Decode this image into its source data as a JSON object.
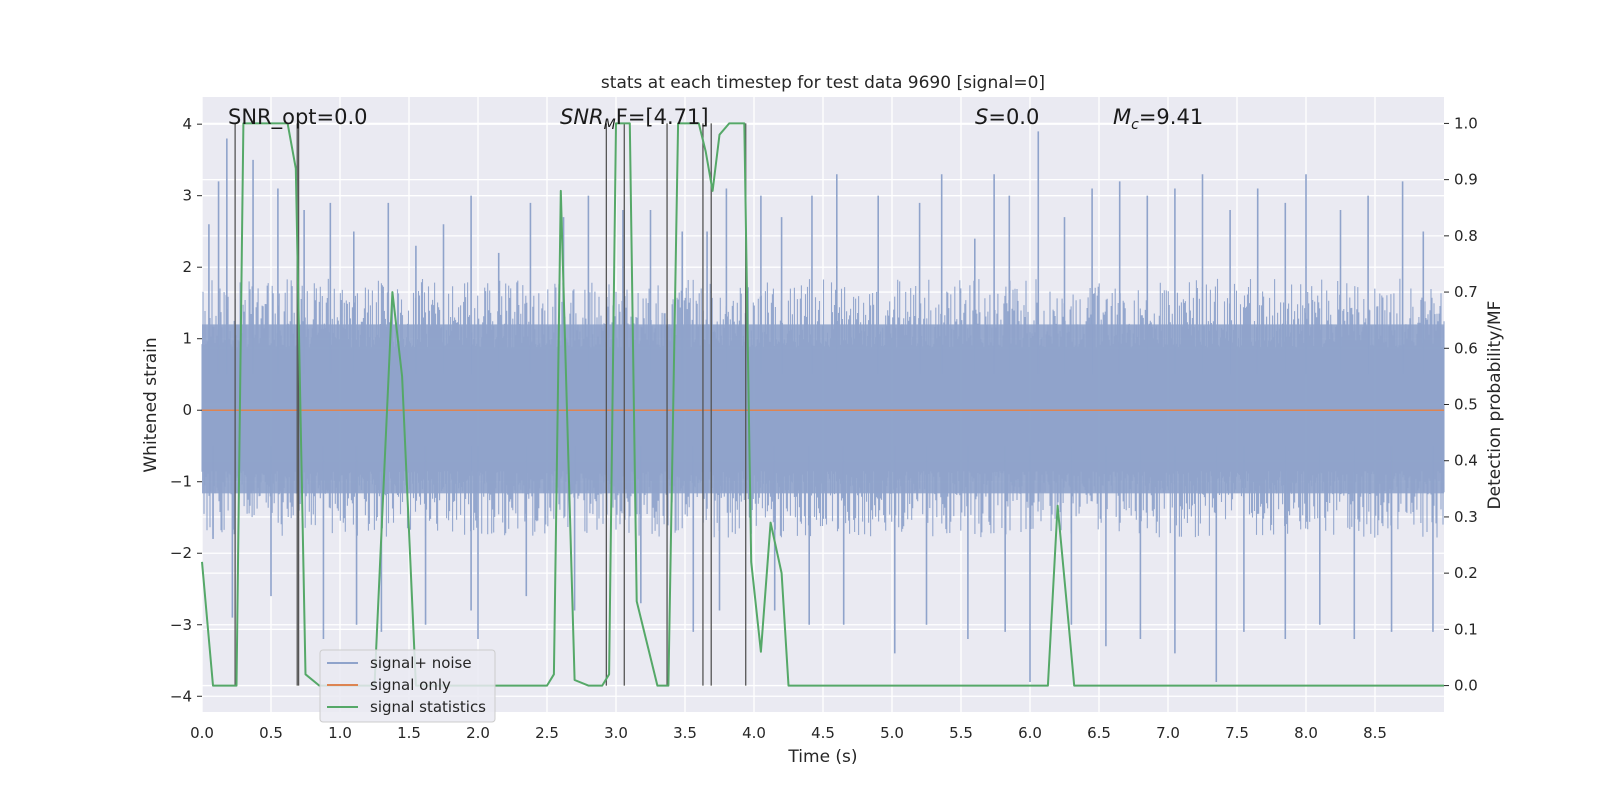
{
  "chart_data": {
    "type": "line",
    "title": "stats at each timestep for test data 9690 [signal=0]",
    "xlabel": "Time (s)",
    "ylabel_left": "Whitened strain",
    "ylabel_right": "Detection probability/MF",
    "xlim": [
      0.0,
      9.0
    ],
    "ylim_left": [
      -4.22,
      4.38
    ],
    "ylim_right": [
      -0.047,
      1.047
    ],
    "xticks": [
      "0.0",
      "0.5",
      "1.0",
      "1.5",
      "2.0",
      "2.5",
      "3.0",
      "3.5",
      "4.0",
      "4.5",
      "5.0",
      "5.5",
      "6.0",
      "6.5",
      "7.0",
      "7.5",
      "8.0",
      "8.5"
    ],
    "xtick_values": [
      0.0,
      0.5,
      1.0,
      1.5,
      2.0,
      2.5,
      3.0,
      3.5,
      4.0,
      4.5,
      5.0,
      5.5,
      6.0,
      6.5,
      7.0,
      7.5,
      8.0,
      8.5
    ],
    "yticks_left": [
      "−4",
      "−3",
      "−2",
      "−1",
      "0",
      "1",
      "2",
      "3",
      "4"
    ],
    "ytick_values_left": [
      -4,
      -3,
      -2,
      -1,
      0,
      1,
      2,
      3,
      4
    ],
    "yticks_right": [
      "0.0",
      "0.1",
      "0.2",
      "0.3",
      "0.4",
      "0.5",
      "0.6",
      "0.7",
      "0.8",
      "0.9",
      "1.0"
    ],
    "ytick_values_right": [
      0.0,
      0.1,
      0.2,
      0.3,
      0.4,
      0.5,
      0.6,
      0.7,
      0.8,
      0.9,
      1.0
    ],
    "grid": true,
    "legend_position": "lower-left",
    "annotations": {
      "snr_opt": "SNR_opt=0.0",
      "snr_mf_prefix": "SNR",
      "snr_mf_sub": "M",
      "snr_mf_suffix": "F=[4.71]",
      "s_label": "S",
      "s_value": "=0.0",
      "mc_label": "M",
      "mc_sub": "c",
      "mc_value": "=9.41"
    },
    "series": [
      {
        "name": "signal+ noise",
        "color": "#8fa3cb",
        "axis": "left",
        "style": "noise",
        "envelope_upper": 1.6,
        "envelope_lower": -1.55,
        "peaks": [
          {
            "x": 0.05,
            "y": 2.6
          },
          {
            "x": 0.12,
            "y": 3.2
          },
          {
            "x": 0.18,
            "y": 3.8
          },
          {
            "x": 0.37,
            "y": 3.5
          },
          {
            "x": 0.55,
            "y": 3.1
          },
          {
            "x": 0.74,
            "y": 2.8
          },
          {
            "x": 0.93,
            "y": 2.9
          },
          {
            "x": 1.1,
            "y": 2.5
          },
          {
            "x": 1.35,
            "y": 2.9
          },
          {
            "x": 1.55,
            "y": 2.3
          },
          {
            "x": 1.75,
            "y": 2.6
          },
          {
            "x": 1.95,
            "y": 3.0
          },
          {
            "x": 2.15,
            "y": 2.2
          },
          {
            "x": 2.38,
            "y": 2.9
          },
          {
            "x": 2.62,
            "y": 2.7
          },
          {
            "x": 2.8,
            "y": 3.0
          },
          {
            "x": 3.05,
            "y": 2.8
          },
          {
            "x": 3.25,
            "y": 2.8
          },
          {
            "x": 3.48,
            "y": 2.5
          },
          {
            "x": 3.66,
            "y": 2.5
          },
          {
            "x": 3.8,
            "y": 3.1
          },
          {
            "x": 4.05,
            "y": 3.0
          },
          {
            "x": 4.2,
            "y": 2.7
          },
          {
            "x": 4.42,
            "y": 3.0
          },
          {
            "x": 4.6,
            "y": 3.3
          },
          {
            "x": 4.9,
            "y": 3.0
          },
          {
            "x": 5.2,
            "y": 2.9
          },
          {
            "x": 5.36,
            "y": 3.3
          },
          {
            "x": 5.6,
            "y": 2.4
          },
          {
            "x": 5.74,
            "y": 3.3
          },
          {
            "x": 5.85,
            "y": 3.0
          },
          {
            "x": 6.06,
            "y": 3.9
          },
          {
            "x": 6.25,
            "y": 2.7
          },
          {
            "x": 6.45,
            "y": 3.1
          },
          {
            "x": 6.65,
            "y": 3.2
          },
          {
            "x": 6.85,
            "y": 3.0
          },
          {
            "x": 7.05,
            "y": 3.1
          },
          {
            "x": 7.25,
            "y": 3.3
          },
          {
            "x": 7.45,
            "y": 2.8
          },
          {
            "x": 7.65,
            "y": 3.1
          },
          {
            "x": 7.85,
            "y": 2.9
          },
          {
            "x": 8.0,
            "y": 3.3
          },
          {
            "x": 8.25,
            "y": 2.8
          },
          {
            "x": 8.45,
            "y": 3.0
          },
          {
            "x": 8.7,
            "y": 3.2
          },
          {
            "x": 8.85,
            "y": 2.5
          }
        ],
        "troughs": [
          {
            "x": 0.08,
            "y": -1.8
          },
          {
            "x": 0.22,
            "y": -2.9
          },
          {
            "x": 0.5,
            "y": -2.6
          },
          {
            "x": 0.88,
            "y": -3.2
          },
          {
            "x": 1.12,
            "y": -3.0
          },
          {
            "x": 1.3,
            "y": -3.1
          },
          {
            "x": 1.62,
            "y": -3.0
          },
          {
            "x": 1.95,
            "y": -2.8
          },
          {
            "x": 2.0,
            "y": -3.2
          },
          {
            "x": 2.35,
            "y": -2.6
          },
          {
            "x": 2.7,
            "y": -2.8
          },
          {
            "x": 3.18,
            "y": -2.7
          },
          {
            "x": 3.56,
            "y": -3.1
          },
          {
            "x": 3.75,
            "y": -2.8
          },
          {
            "x": 4.15,
            "y": -2.8
          },
          {
            "x": 4.4,
            "y": -3.0
          },
          {
            "x": 4.65,
            "y": -3.0
          },
          {
            "x": 5.02,
            "y": -3.4
          },
          {
            "x": 5.25,
            "y": -3.0
          },
          {
            "x": 5.55,
            "y": -3.2
          },
          {
            "x": 5.82,
            "y": -3.1
          },
          {
            "x": 6.0,
            "y": -3.8
          },
          {
            "x": 6.3,
            "y": -3.0
          },
          {
            "x": 6.55,
            "y": -3.3
          },
          {
            "x": 6.8,
            "y": -3.2
          },
          {
            "x": 7.05,
            "y": -3.4
          },
          {
            "x": 7.35,
            "y": -3.8
          },
          {
            "x": 7.55,
            "y": -3.1
          },
          {
            "x": 7.85,
            "y": -3.2
          },
          {
            "x": 8.1,
            "y": -3.0
          },
          {
            "x": 8.35,
            "y": -3.2
          },
          {
            "x": 8.62,
            "y": -3.1
          },
          {
            "x": 8.92,
            "y": -3.1
          }
        ]
      },
      {
        "name": "signal only",
        "color": "#dd8452",
        "axis": "left",
        "style": "flat",
        "x": [
          0.0,
          9.0
        ],
        "values": [
          0.0,
          0.0
        ]
      },
      {
        "name": "signal statistics",
        "color": "#55a868",
        "axis": "right",
        "style": "line",
        "x": [
          0.0,
          0.08,
          0.15,
          0.25,
          0.3,
          0.35,
          0.45,
          0.62,
          0.68,
          0.75,
          0.85,
          1.0,
          1.25,
          1.38,
          1.45,
          1.55,
          1.7,
          2.0,
          2.5,
          2.55,
          2.6,
          2.7,
          2.8,
          2.9,
          2.95,
          3.0,
          3.1,
          3.15,
          3.3,
          3.38,
          3.45,
          3.55,
          3.6,
          3.65,
          3.7,
          3.75,
          3.82,
          3.93,
          3.98,
          4.05,
          4.12,
          4.2,
          4.25,
          4.3,
          5.0,
          6.13,
          6.2,
          6.28,
          6.32,
          9.0
        ],
        "values": [
          0.22,
          0.0,
          0.0,
          0.0,
          1.0,
          1.0,
          1.0,
          1.0,
          0.92,
          0.02,
          0.0,
          0.0,
          0.0,
          0.7,
          0.55,
          0.0,
          0.0,
          0.0,
          0.0,
          0.02,
          0.88,
          0.01,
          0.0,
          0.0,
          0.02,
          1.0,
          1.0,
          0.15,
          0.0,
          0.0,
          1.0,
          1.0,
          1.0,
          0.95,
          0.88,
          0.98,
          1.0,
          1.0,
          0.22,
          0.06,
          0.29,
          0.2,
          0.0,
          0.0,
          0.0,
          0.0,
          0.32,
          0.11,
          0.0,
          0.0
        ]
      }
    ],
    "vertical_markers": [
      0.24,
      0.69,
      0.7,
      2.93,
      3.06,
      3.37,
      3.63,
      3.69,
      3.94
    ]
  }
}
